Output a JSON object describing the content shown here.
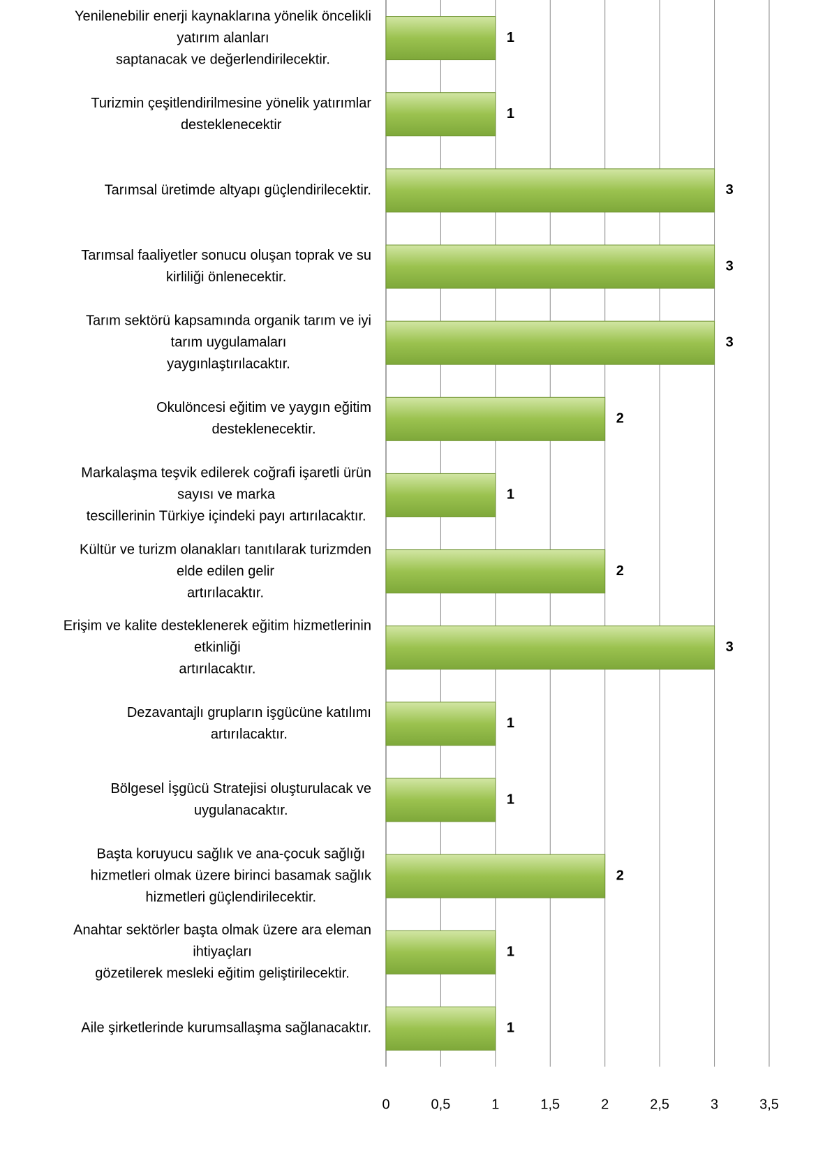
{
  "chart_data": {
    "type": "barh",
    "categories": [
      "Yenilenebilir enerji kaynaklarına yönelik öncelikli\nyatırım alanları\nsaptanacak ve değerlendirilecektir.",
      "Turizmin çeşitlendirilmesine yönelik yatırımlar\ndesteklenecektir",
      "Tarımsal üretimde altyapı güçlendirilecektir.",
      "Tarımsal faaliyetler sonucu oluşan toprak ve su\nkirliliği önlenecektir.",
      "Tarım sektörü kapsamında organik tarım ve iyi\ntarım uygulamaları\nyaygınlaştırılacaktır.",
      "Okulöncesi eğitim ve yaygın eğitim\ndesteklenecektir.",
      "Markalaşma teşvik edilerek coğrafi işaretli ürün\nsayısı ve marka\ntescillerinin Türkiye içindeki payı artırılacaktır.",
      "Kültür ve turizm olanakları tanıtılarak turizmden\nelde edilen gelir\nartırılacaktır.",
      "Erişim ve kalite desteklenerek eğitim hizmetlerinin\netkinliği\nartırılacaktır.",
      "Dezavantajlı grupların işgücüne katılımı\nartırılacaktır.",
      "Bölgesel İşgücü Stratejisi oluşturulacak ve\nuygulanacaktır.",
      "Başta koruyucu sağlık ve ana-çocuk sağlığı\nhizmetleri olmak üzere birinci basamak sağlık\nhizmetleri güçlendirilecektir.",
      "Anahtar sektörler başta olmak üzere ara eleman\nihtiyaçları\ngözetilerek mesleki eğitim geliştirilecektir.",
      "Aile şirketlerinde kurumsallaşma sağlanacaktır."
    ],
    "values": [
      1,
      1,
      3,
      3,
      3,
      2,
      1,
      2,
      3,
      1,
      1,
      2,
      1,
      1
    ],
    "color": "#9bbb59",
    "xlim": [
      0,
      3.5
    ],
    "xticks": [
      0,
      {
        "value": 0.5,
        "label": "0,5"
      },
      1,
      {
        "value": 1.5,
        "label": "1,5"
      },
      2,
      {
        "value": 2.5,
        "label": "2,5"
      },
      3,
      {
        "value": 3.5,
        "label": "3,5"
      }
    ],
    "grid": true
  }
}
